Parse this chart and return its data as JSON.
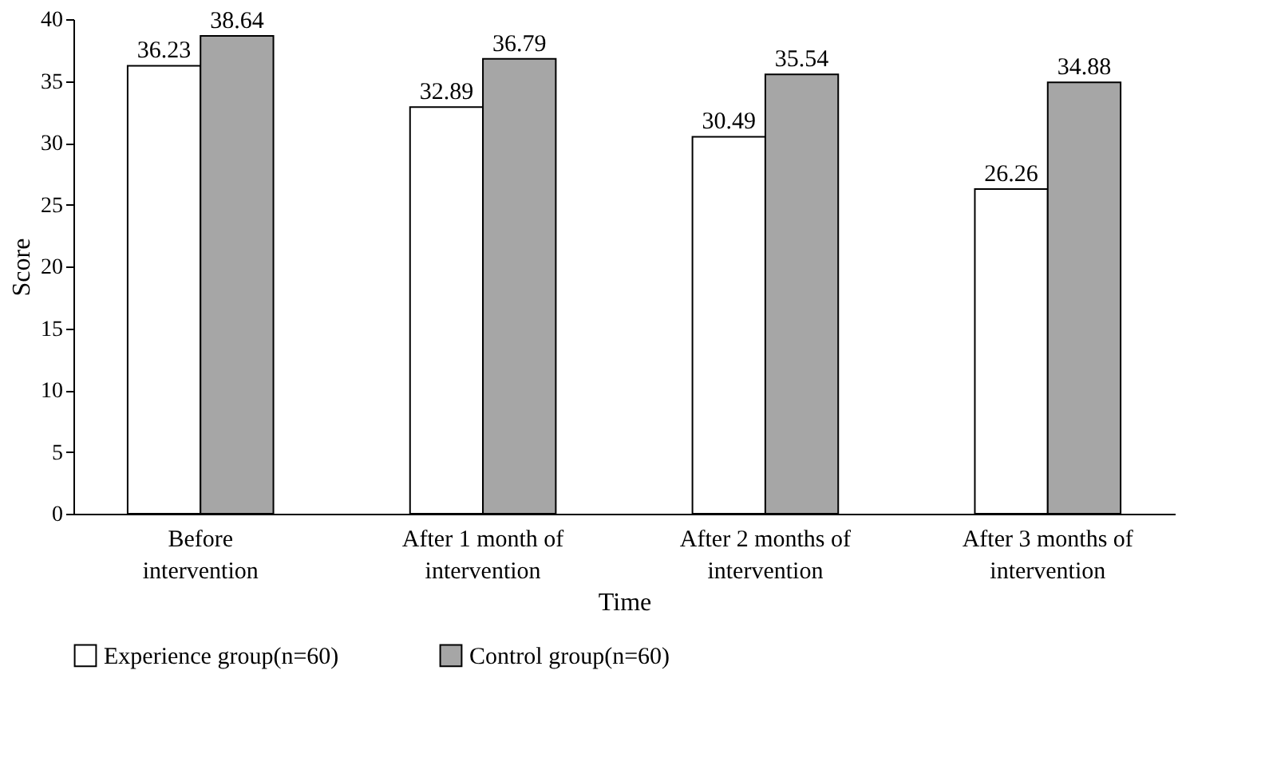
{
  "chart_data": {
    "type": "bar",
    "xlabel": "Time",
    "ylabel": "Score",
    "categories": [
      "Before intervention",
      "After 1 month of intervention",
      "After 2 months of intervention",
      "After 3 months of intervention"
    ],
    "series": [
      {
        "name": "Experience group(n=60)",
        "color": "#ffffff",
        "values": [
          36.23,
          32.89,
          30.49,
          26.26
        ]
      },
      {
        "name": "Control group(n=60)",
        "color": "#a6a6a6",
        "values": [
          38.64,
          36.79,
          35.54,
          34.88
        ]
      }
    ],
    "ylim": [
      0,
      40
    ],
    "yticks": [
      0,
      5,
      10,
      15,
      20,
      25,
      30,
      35,
      40
    ],
    "grid": false,
    "legend": "bottom",
    "data_labels": true
  }
}
